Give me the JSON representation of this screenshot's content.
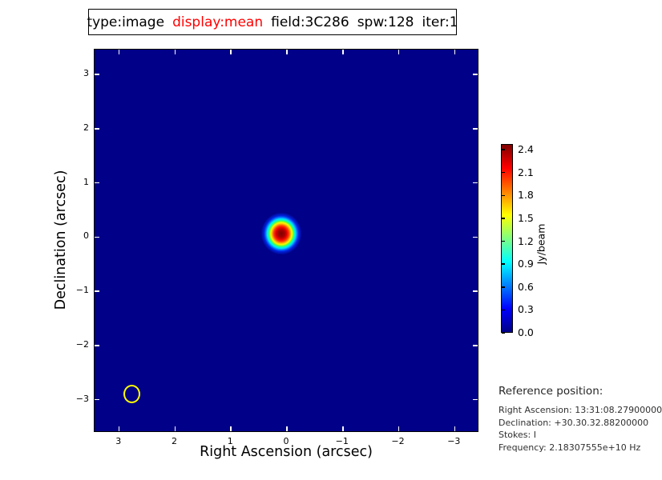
{
  "title": {
    "segments": [
      {
        "text": "type:image",
        "color": "#000000"
      },
      {
        "text": "display:mean",
        "color": "#ff0000"
      },
      {
        "text": "field:3C286",
        "color": "#000000"
      },
      {
        "text": "spw:128",
        "color": "#000000"
      },
      {
        "text": "iter:1",
        "color": "#000000"
      }
    ]
  },
  "chart_data": {
    "type": "heatmap",
    "title": "type:image display:mean field:3C286 spw:128 iter:1",
    "xlabel": "Right Ascension (arcsec)",
    "ylabel": "Declination (arcsec)",
    "xlim": [
      3.44,
      -3.44
    ],
    "ylim": [
      3.46,
      -3.61
    ],
    "x_ticks": [
      {
        "value": 3,
        "label": "3"
      },
      {
        "value": 2,
        "label": "2"
      },
      {
        "value": 1,
        "label": "1"
      },
      {
        "value": 0,
        "label": "0"
      },
      {
        "value": -1,
        "label": "−1"
      },
      {
        "value": -2,
        "label": "−2"
      },
      {
        "value": -3,
        "label": "−3"
      }
    ],
    "y_ticks": [
      {
        "value": 3,
        "label": "3"
      },
      {
        "value": 2,
        "label": "2"
      },
      {
        "value": 1,
        "label": "1"
      },
      {
        "value": 0,
        "label": "0"
      },
      {
        "value": -1,
        "label": "−1"
      },
      {
        "value": -2,
        "label": "−2"
      },
      {
        "value": -3,
        "label": "−3"
      }
    ],
    "grid": false,
    "colormap": "jet",
    "background_value_jy_per_beam": 0.0,
    "source": {
      "ra_arcsec": 0.1,
      "dec_arcsec": 0.06,
      "peak_jy_per_beam": 2.4,
      "visible_diameter_arcsec": 0.62
    },
    "beam_ellipse": {
      "ra_arcsec": 2.77,
      "dec_arcsec": -2.9,
      "rx_arcsec": 0.15,
      "ry_arcsec": 0.17
    },
    "colorbar": {
      "label": "Jy/beam",
      "min": 0.0,
      "max": 2.4,
      "ticks": [
        {
          "value": 0.0,
          "label": "0.0"
        },
        {
          "value": 0.3,
          "label": "0.3"
        },
        {
          "value": 0.6,
          "label": "0.6"
        },
        {
          "value": 0.9,
          "label": "0.9"
        },
        {
          "value": 1.2,
          "label": "1.2"
        },
        {
          "value": 1.5,
          "label": "1.5"
        },
        {
          "value": 1.8,
          "label": "1.8"
        },
        {
          "value": 2.1,
          "label": "2.1"
        },
        {
          "value": 2.4,
          "label": "2.4"
        }
      ]
    }
  },
  "reference": {
    "heading": "Reference position:",
    "lines": [
      "Right Ascension: 13:31:08.27900000",
      "Declination: +30.30.32.88200000",
      "Stokes: I",
      "Frequency: 2.18307555e+10 Hz"
    ]
  },
  "colors": {
    "field_navy": "#000088",
    "beam_yellow": "#ffff00",
    "display_mean_red": "#ff0000",
    "tick_white": "#ffffff"
  }
}
